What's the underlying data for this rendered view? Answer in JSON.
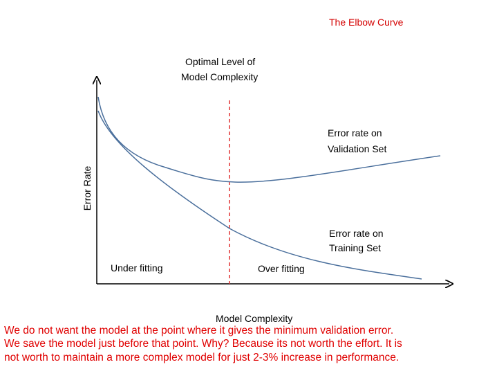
{
  "title": "The Elbow Curve",
  "optimal_label": [
    "Optimal Level of",
    "Model Complexity"
  ],
  "validation_label": [
    "Error rate on",
    "Validation Set"
  ],
  "training_label": [
    "Error rate on",
    "Training Set"
  ],
  "y_axis_label": "Error Rate",
  "x_axis_label": "Model Complexity",
  "regions": [
    "Under fitting",
    "Over fitting"
  ],
  "caption": [
    "We do not want the model at the point where it gives the minimum validation error.",
    "We save the model just before that point. Why? Because its not worth the effort. It is",
    "not worth to maintain a more complex model for just 2-3% increase in performance."
  ]
}
